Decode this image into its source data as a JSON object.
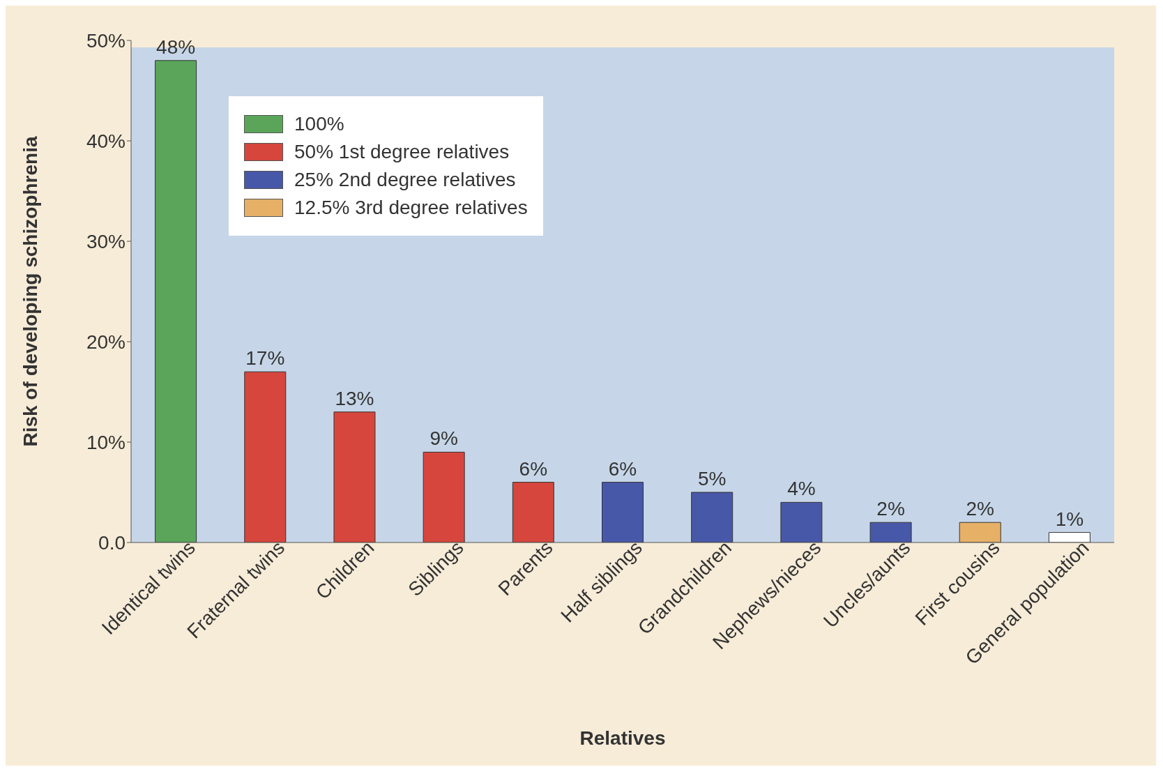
{
  "chart_data": {
    "type": "bar",
    "xlabel": "Relatives",
    "ylabel": "Risk of developing schizophrenia",
    "categories": [
      "Identical twins",
      "Fraternal twins",
      "Children",
      "Siblings",
      "Parents",
      "Half siblings",
      "Grandchildren",
      "Nephews/nieces",
      "Uncles/aunts",
      "First cousins",
      "General population"
    ],
    "stacked": true,
    "series": [
      {
        "name": "100%",
        "color": "#5aa55a",
        "values": [
          48,
          null,
          null,
          null,
          null,
          null,
          null,
          null,
          null,
          null,
          null
        ],
        "value_labels": [
          "48%",
          null,
          null,
          null,
          null,
          null,
          null,
          null,
          null,
          null,
          null
        ]
      },
      {
        "name": "50% 1st degree relatives",
        "color": "#d6463c",
        "values": [
          null,
          17,
          13,
          9,
          6,
          null,
          null,
          null,
          null,
          null,
          null
        ],
        "value_labels": [
          null,
          "17%",
          "13%",
          "9%",
          "6%",
          null,
          null,
          null,
          null,
          null,
          null
        ]
      },
      {
        "name": "25% 2nd degree relatives",
        "color": "#4858a8",
        "values": [
          null,
          null,
          null,
          null,
          null,
          6,
          5,
          4,
          2,
          null,
          null
        ],
        "value_labels": [
          null,
          null,
          null,
          null,
          null,
          "6%",
          "5%",
          "4%",
          "2%",
          null,
          null
        ]
      },
      {
        "name": "12.5% 3rd degree relatives",
        "color": "#e6b066",
        "values": [
          null,
          null,
          null,
          null,
          null,
          null,
          null,
          null,
          null,
          2,
          null
        ],
        "value_labels": [
          null,
          null,
          null,
          null,
          null,
          null,
          null,
          null,
          null,
          "2%",
          null
        ]
      },
      {
        "color": "#ffffff",
        "values": [
          null,
          null,
          null,
          null,
          null,
          null,
          null,
          null,
          null,
          null,
          1
        ],
        "value_labels": [
          null,
          null,
          null,
          null,
          null,
          null,
          null,
          null,
          null,
          null,
          "1%"
        ]
      }
    ],
    "ylim": [
      0,
      50
    ],
    "yticks": [
      {
        "value": 0,
        "label": "0.0"
      },
      {
        "value": 10,
        "label": "10%"
      },
      {
        "value": 20,
        "label": "20%"
      },
      {
        "value": 30,
        "label": "30%"
      },
      {
        "value": 40,
        "label": "40%"
      },
      {
        "value": 50,
        "label": "50%"
      }
    ],
    "grid": false,
    "legend": "top left"
  }
}
